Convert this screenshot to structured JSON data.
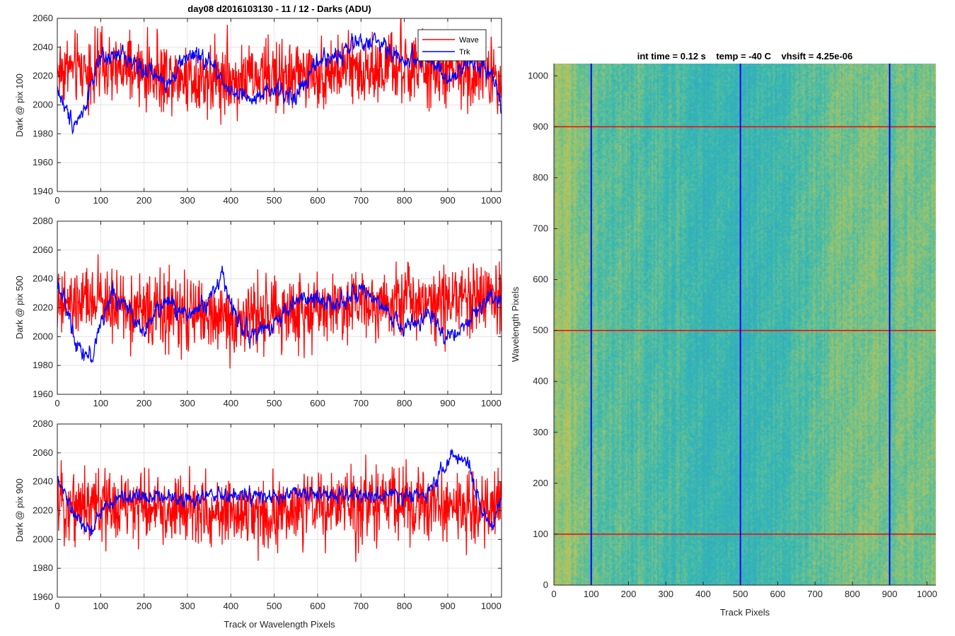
{
  "figure": {
    "title": "day08 d2016103130 - 11 / 12 - Darks (ADU)",
    "xlabel": "Track or Wavelength Pixels"
  },
  "chart_data": [
    {
      "id": "p1",
      "type": "line",
      "title": "day08 d2016103130 - 11 / 12 - Darks (ADU)",
      "ylabel": "Dark @ pix 100",
      "xlabel": "",
      "xlim": [
        0,
        1024
      ],
      "ylim": [
        1940,
        2060
      ],
      "xticks": [
        0,
        100,
        200,
        300,
        400,
        500,
        600,
        700,
        800,
        900,
        1000
      ],
      "yticks": [
        1940,
        1960,
        1980,
        2000,
        2020,
        2040,
        2060
      ],
      "grid": true,
      "legend": {
        "position": "top-right",
        "entries": [
          "Wave",
          "Trk"
        ]
      },
      "series": [
        {
          "name": "Wave",
          "color": "#ff0000",
          "noise": "fast",
          "amp": 12,
          "x": [
            0,
            100,
            200,
            300,
            400,
            500,
            600,
            700,
            800,
            900,
            1000,
            1023
          ],
          "y": [
            2025,
            2025,
            2022,
            2020,
            2018,
            2020,
            2022,
            2025,
            2025,
            2022,
            2022,
            2022
          ]
        },
        {
          "name": "Trk",
          "color": "#0000ff",
          "noise": "slow",
          "amp": 6,
          "x": [
            0,
            20,
            40,
            60,
            80,
            100,
            150,
            200,
            250,
            300,
            350,
            400,
            450,
            500,
            550,
            600,
            650,
            700,
            750,
            800,
            850,
            900,
            950,
            1000,
            1023
          ],
          "y": [
            2012,
            1995,
            1988,
            1995,
            2018,
            2030,
            2035,
            2025,
            2015,
            2035,
            2030,
            2010,
            2002,
            2010,
            2005,
            2030,
            2035,
            2045,
            2042,
            2030,
            2035,
            2015,
            2030,
            2025,
            2000
          ]
        }
      ]
    },
    {
      "id": "p2",
      "type": "line",
      "title": "",
      "ylabel": "Dark @ pix 500",
      "xlabel": "",
      "xlim": [
        0,
        1024
      ],
      "ylim": [
        1960,
        2080
      ],
      "xticks": [
        0,
        100,
        200,
        300,
        400,
        500,
        600,
        700,
        800,
        900,
        1000
      ],
      "yticks": [
        1960,
        1980,
        2000,
        2020,
        2040,
        2060,
        2080
      ],
      "grid": true,
      "series": [
        {
          "name": "Wave",
          "color": "#ff0000",
          "noise": "fast",
          "amp": 12,
          "x": [
            0,
            100,
            200,
            300,
            400,
            500,
            600,
            700,
            800,
            900,
            1000,
            1023
          ],
          "y": [
            2020,
            2025,
            2018,
            2015,
            2012,
            2015,
            2020,
            2025,
            2025,
            2028,
            2028,
            2028
          ]
        },
        {
          "name": "Trk",
          "color": "#0000ff",
          "noise": "slow",
          "amp": 6,
          "x": [
            0,
            20,
            40,
            60,
            80,
            100,
            130,
            160,
            200,
            250,
            300,
            350,
            380,
            400,
            450,
            500,
            550,
            600,
            650,
            700,
            750,
            800,
            850,
            900,
            950,
            1000,
            1023
          ],
          "y": [
            2040,
            2020,
            2000,
            1990,
            1985,
            2010,
            2030,
            2020,
            2005,
            2025,
            2015,
            2025,
            2045,
            2020,
            2000,
            2010,
            2025,
            2025,
            2025,
            2030,
            2020,
            2005,
            2015,
            2000,
            2010,
            2030,
            2025
          ]
        }
      ]
    },
    {
      "id": "p3",
      "type": "line",
      "title": "",
      "ylabel": "Dark @ pix 900",
      "xlabel": "Track or Wavelength Pixels",
      "xlim": [
        0,
        1024
      ],
      "ylim": [
        1960,
        2080
      ],
      "xticks": [
        0,
        100,
        200,
        300,
        400,
        500,
        600,
        700,
        800,
        900,
        1000
      ],
      "yticks": [
        1960,
        1980,
        2000,
        2020,
        2040,
        2060,
        2080
      ],
      "grid": true,
      "series": [
        {
          "name": "Wave",
          "color": "#ff0000",
          "noise": "fast",
          "amp": 12,
          "x": [
            0,
            100,
            200,
            300,
            400,
            500,
            600,
            700,
            800,
            900,
            1000,
            1023
          ],
          "y": [
            2025,
            2025,
            2022,
            2020,
            2018,
            2018,
            2022,
            2025,
            2025,
            2022,
            2020,
            2025
          ]
        },
        {
          "name": "Trk",
          "color": "#0000ff",
          "noise": "slow",
          "amp": 5,
          "x": [
            0,
            20,
            40,
            60,
            80,
            100,
            150,
            200,
            250,
            300,
            350,
            400,
            450,
            500,
            550,
            600,
            650,
            700,
            750,
            800,
            850,
            880,
            910,
            950,
            980,
            1000,
            1023
          ],
          "y": [
            2040,
            2030,
            2015,
            2010,
            2005,
            2020,
            2030,
            2030,
            2030,
            2028,
            2030,
            2030,
            2030,
            2028,
            2032,
            2030,
            2032,
            2030,
            2030,
            2030,
            2032,
            2045,
            2058,
            2050,
            2020,
            2005,
            2030
          ]
        }
      ]
    },
    {
      "id": "img",
      "type": "heatmap",
      "title": "int time = 0.12 s    temp = -40 C    vhsift = 4.25e-06",
      "xlabel": "Track Pixels",
      "ylabel": "Wavelength Pixels",
      "xlim": [
        0,
        1024
      ],
      "ylim": [
        0,
        1024
      ],
      "xticks": [
        0,
        100,
        200,
        300,
        400,
        500,
        600,
        700,
        800,
        900,
        1000
      ],
      "yticks": [
        0,
        100,
        200,
        300,
        400,
        500,
        600,
        700,
        800,
        900,
        1000
      ],
      "colormap": [
        "#3aa6c2",
        "#2fb6b8",
        "#5cbf9a",
        "#9cc46b",
        "#c2c25a"
      ],
      "column_bands": [
        {
          "x": 0,
          "level": 0.82
        },
        {
          "x": 100,
          "level": 0.55
        },
        {
          "x": 200,
          "level": 0.45
        },
        {
          "x": 350,
          "level": 0.35
        },
        {
          "x": 450,
          "level": 0.22
        },
        {
          "x": 500,
          "level": 0.25
        },
        {
          "x": 600,
          "level": 0.32
        },
        {
          "x": 700,
          "level": 0.45
        },
        {
          "x": 800,
          "level": 0.62
        },
        {
          "x": 900,
          "level": 0.55
        },
        {
          "x": 1024,
          "level": 0.62
        }
      ],
      "vlines": {
        "color": "#0000ff",
        "x": [
          100,
          500,
          900
        ]
      },
      "hlines": {
        "color": "#ff0000",
        "y": [
          100,
          500,
          900
        ]
      }
    }
  ]
}
